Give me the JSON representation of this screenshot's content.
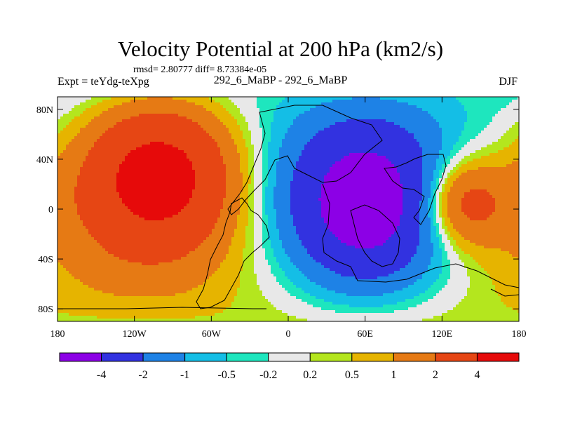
{
  "header": {
    "title": "Velocity Potential at 200 hPa (km2/s)",
    "stats": "rmsd= 2.80777 diff= 8.73384e-05",
    "left_label": "Expt = teYdg-teXpg",
    "center_label": "292_6_MaBP - 292_6_MaBP",
    "right_label": "DJF"
  },
  "chart_data": {
    "type": "heatmap",
    "title": "Velocity Potential at 200 hPa (km2/s)",
    "xlabel": "",
    "ylabel": "",
    "xlim": [
      -180,
      180
    ],
    "ylim": [
      -90,
      90
    ],
    "x_ticks": [
      {
        "value": -180,
        "label": "180"
      },
      {
        "value": -120,
        "label": "120W"
      },
      {
        "value": -60,
        "label": "60W"
      },
      {
        "value": 0,
        "label": "0"
      },
      {
        "value": 60,
        "label": "60E"
      },
      {
        "value": 120,
        "label": "120E"
      },
      {
        "value": 180,
        "label": "180"
      }
    ],
    "y_ticks": [
      {
        "value": 80,
        "label": "80N"
      },
      {
        "value": 40,
        "label": "40N"
      },
      {
        "value": 0,
        "label": "0"
      },
      {
        "value": -40,
        "label": "40S"
      },
      {
        "value": -80,
        "label": "80S"
      }
    ],
    "contour_levels": [
      "-4",
      "-2",
      "-1",
      "-0.5",
      "-0.2",
      "0.2",
      "0.5",
      "1",
      "2",
      "4"
    ],
    "colorbar_colors": [
      "#8c00e6",
      "#3232e0",
      "#1e82e6",
      "#14bee6",
      "#1ee6be",
      "#e8e8e8",
      "#b4e61e",
      "#e6b400",
      "#e67a14",
      "#e64614",
      "#e60a0a"
    ],
    "field": {
      "description": "wavenumber-1 dipole",
      "minimum_center": {
        "lon": 60,
        "lat": 5
      },
      "maximum_center": {
        "lon": -100,
        "lat": 30
      }
    }
  }
}
